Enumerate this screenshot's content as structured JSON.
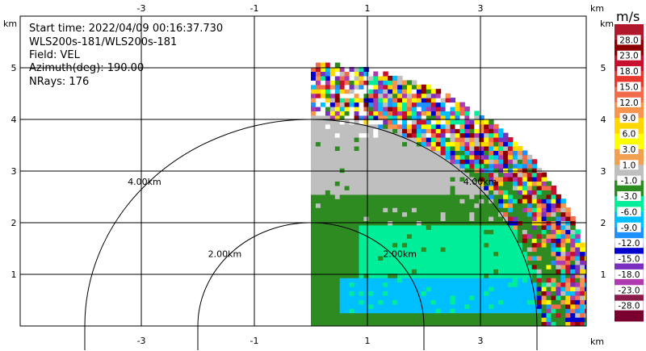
{
  "info": {
    "start_time": "Start time: 2022/04/09 00:16:37.730",
    "instrument": "WLS200s-181/WLS200s-181",
    "field": "Field: VEL",
    "azimuth": "Azimuth(deg): 190.00",
    "nrays": "NRays: 176"
  },
  "chart_data": {
    "type": "heatmap",
    "title": "",
    "xlabel": "km",
    "ylabel": "km",
    "x_unit": "km",
    "y_unit": "km",
    "xlim": [
      -5.0,
      5.0
    ],
    "ylim": [
      0,
      5.5
    ],
    "x_ticks": [
      -3,
      -1,
      1,
      3
    ],
    "y_ticks": [
      1,
      2,
      3,
      4,
      5
    ],
    "grid": true,
    "range_rings": [
      {
        "radius": 2.0,
        "label": "2.00km"
      },
      {
        "radius": 4.0,
        "label": "4.00km"
      }
    ],
    "sector": {
      "x_start_km": 0.0,
      "max_range_km": 5.08
    },
    "colorbar": {
      "unit": "m/s",
      "labels": [
        "28.0",
        "23.0",
        "18.0",
        "15.0",
        "12.0",
        "9.0",
        "6.0",
        "3.0",
        "1.0",
        "-1.0",
        "-3.0",
        "-6.0",
        "-9.0",
        "-12.0",
        "-15.0",
        "-18.0",
        "-23.0",
        "-28.0"
      ],
      "colors": [
        "#b2182b",
        "#8b0000",
        "#c8102e",
        "#e8392f",
        "#f26b4a",
        "#f7954f",
        "#ffd700",
        "#ffff00",
        "#f0a050",
        "#bfbfbf",
        "#2e8b22",
        "#00ee99",
        "#00bfff",
        "#1e90ff",
        "#0000cd",
        "#7b2fbe",
        "#b03ab0",
        "#8b1a4a",
        "#7a0030"
      ]
    },
    "bands": [
      {
        "r_min": 0.0,
        "r_max": 0.9,
        "color_index": 12,
        "note": "band"
      },
      {
        "r_min": 0.9,
        "r_max": 2.0,
        "color_index": 11
      },
      {
        "r_min": 2.0,
        "r_max": 2.45,
        "color_index": 10
      },
      {
        "r_min": 2.45,
        "r_max": 3.3,
        "color_index": 9
      },
      {
        "r_min": 3.3,
        "r_max": 4.0,
        "color_index": 9
      },
      {
        "r_min": 4.0,
        "r_max": 5.08,
        "color_index": -1
      }
    ]
  }
}
